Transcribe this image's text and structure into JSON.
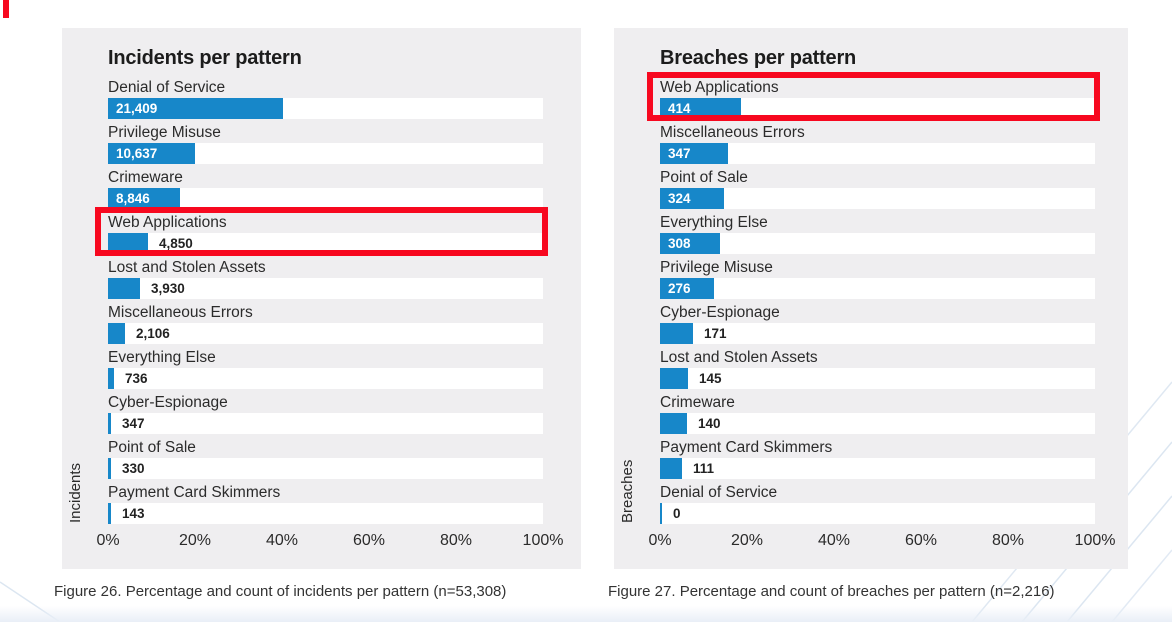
{
  "colors": {
    "bar_fill": "#1787c9",
    "highlight_border": "#f7081f",
    "panel_background": "#efeef0",
    "corner_mark": "#f7081f"
  },
  "chart_data": [
    {
      "type": "bar",
      "orientation": "horizontal",
      "title": "Incidents per pattern",
      "ylabel": "Incidents",
      "xlabel": "",
      "xlim": [
        0,
        100
      ],
      "x_ticks": [
        "0%",
        "20%",
        "40%",
        "60%",
        "80%",
        "100%"
      ],
      "grid": false,
      "n_total": "53,308",
      "categories": [
        "Denial of Service",
        "Privilege Misuse",
        "Crimeware",
        "Web Applications",
        "Lost and Stolen Assets",
        "Miscellaneous Errors",
        "Everything Else",
        "Cyber-Espionage",
        "Point of Sale",
        "Payment Card Skimmers"
      ],
      "values": [
        21409,
        10637,
        8846,
        4850,
        3930,
        2106,
        736,
        347,
        330,
        143
      ],
      "value_labels": [
        "21,409",
        "10,637",
        "8,846",
        "4,850",
        "3,930",
        "2,106",
        "736",
        "347",
        "330",
        "143"
      ],
      "percentages": [
        40.2,
        20.0,
        16.6,
        9.1,
        7.4,
        4.0,
        1.4,
        0.7,
        0.6,
        0.3
      ],
      "highlighted_category": "Web Applications",
      "caption": "Figure 26. Percentage and count of incidents per pattern (n=53,308)"
    },
    {
      "type": "bar",
      "orientation": "horizontal",
      "title": "Breaches per pattern",
      "ylabel": "Breaches",
      "xlabel": "",
      "xlim": [
        0,
        100
      ],
      "x_ticks": [
        "0%",
        "20%",
        "40%",
        "60%",
        "80%",
        "100%"
      ],
      "grid": false,
      "n_total": "2,216",
      "categories": [
        "Web Applications",
        "Miscellaneous Errors",
        "Point of Sale",
        "Everything Else",
        "Privilege Misuse",
        "Cyber-Espionage",
        "Lost and Stolen Assets",
        "Crimeware",
        "Payment Card Skimmers",
        "Denial of Service"
      ],
      "values": [
        414,
        347,
        324,
        308,
        276,
        171,
        145,
        140,
        111,
        0
      ],
      "value_labels": [
        "414",
        "347",
        "324",
        "308",
        "276",
        "171",
        "145",
        "140",
        "111",
        "0"
      ],
      "percentages": [
        18.7,
        15.7,
        14.6,
        13.9,
        12.5,
        7.7,
        6.5,
        6.3,
        5.0,
        0
      ],
      "highlighted_category": "Web Applications",
      "caption": "Figure 27. Percentage and count of breaches per pattern (n=2,216)"
    }
  ]
}
